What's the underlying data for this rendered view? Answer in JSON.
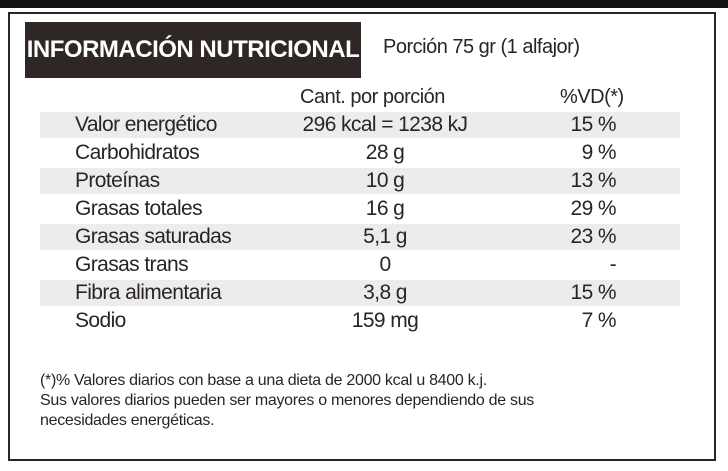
{
  "header": {
    "title": "INFORMACIÓN NUTRICIONAL",
    "serving": "Porción 75 gr (1 alfajor)"
  },
  "table": {
    "columns": [
      "Cant. por porción",
      "%VD(*)"
    ],
    "rows": [
      [
        "Valor energético",
        "296 kcal = 1238 kJ",
        "15 %"
      ],
      [
        "Carbohidratos",
        "28 g",
        "9 %"
      ],
      [
        "Proteínas",
        "10 g",
        "13 %"
      ],
      [
        "Grasas totales",
        "16 g",
        "29 %"
      ],
      [
        "Grasas saturadas",
        "5,1 g",
        "23 %"
      ],
      [
        "Grasas trans",
        "0",
        "-"
      ],
      [
        "Fibra alimentaria",
        "3,8 g",
        "15 %"
      ],
      [
        "Sodio",
        "159 mg",
        "7 %"
      ]
    ]
  },
  "footnote": [
    "(*)% Valores diarios con base a una dieta de 2000 kcal u 8400 k.j.",
    "Sus valores diarios pueden ser mayores o menores dependiendo de sus",
    "necesidades energéticas."
  ]
}
